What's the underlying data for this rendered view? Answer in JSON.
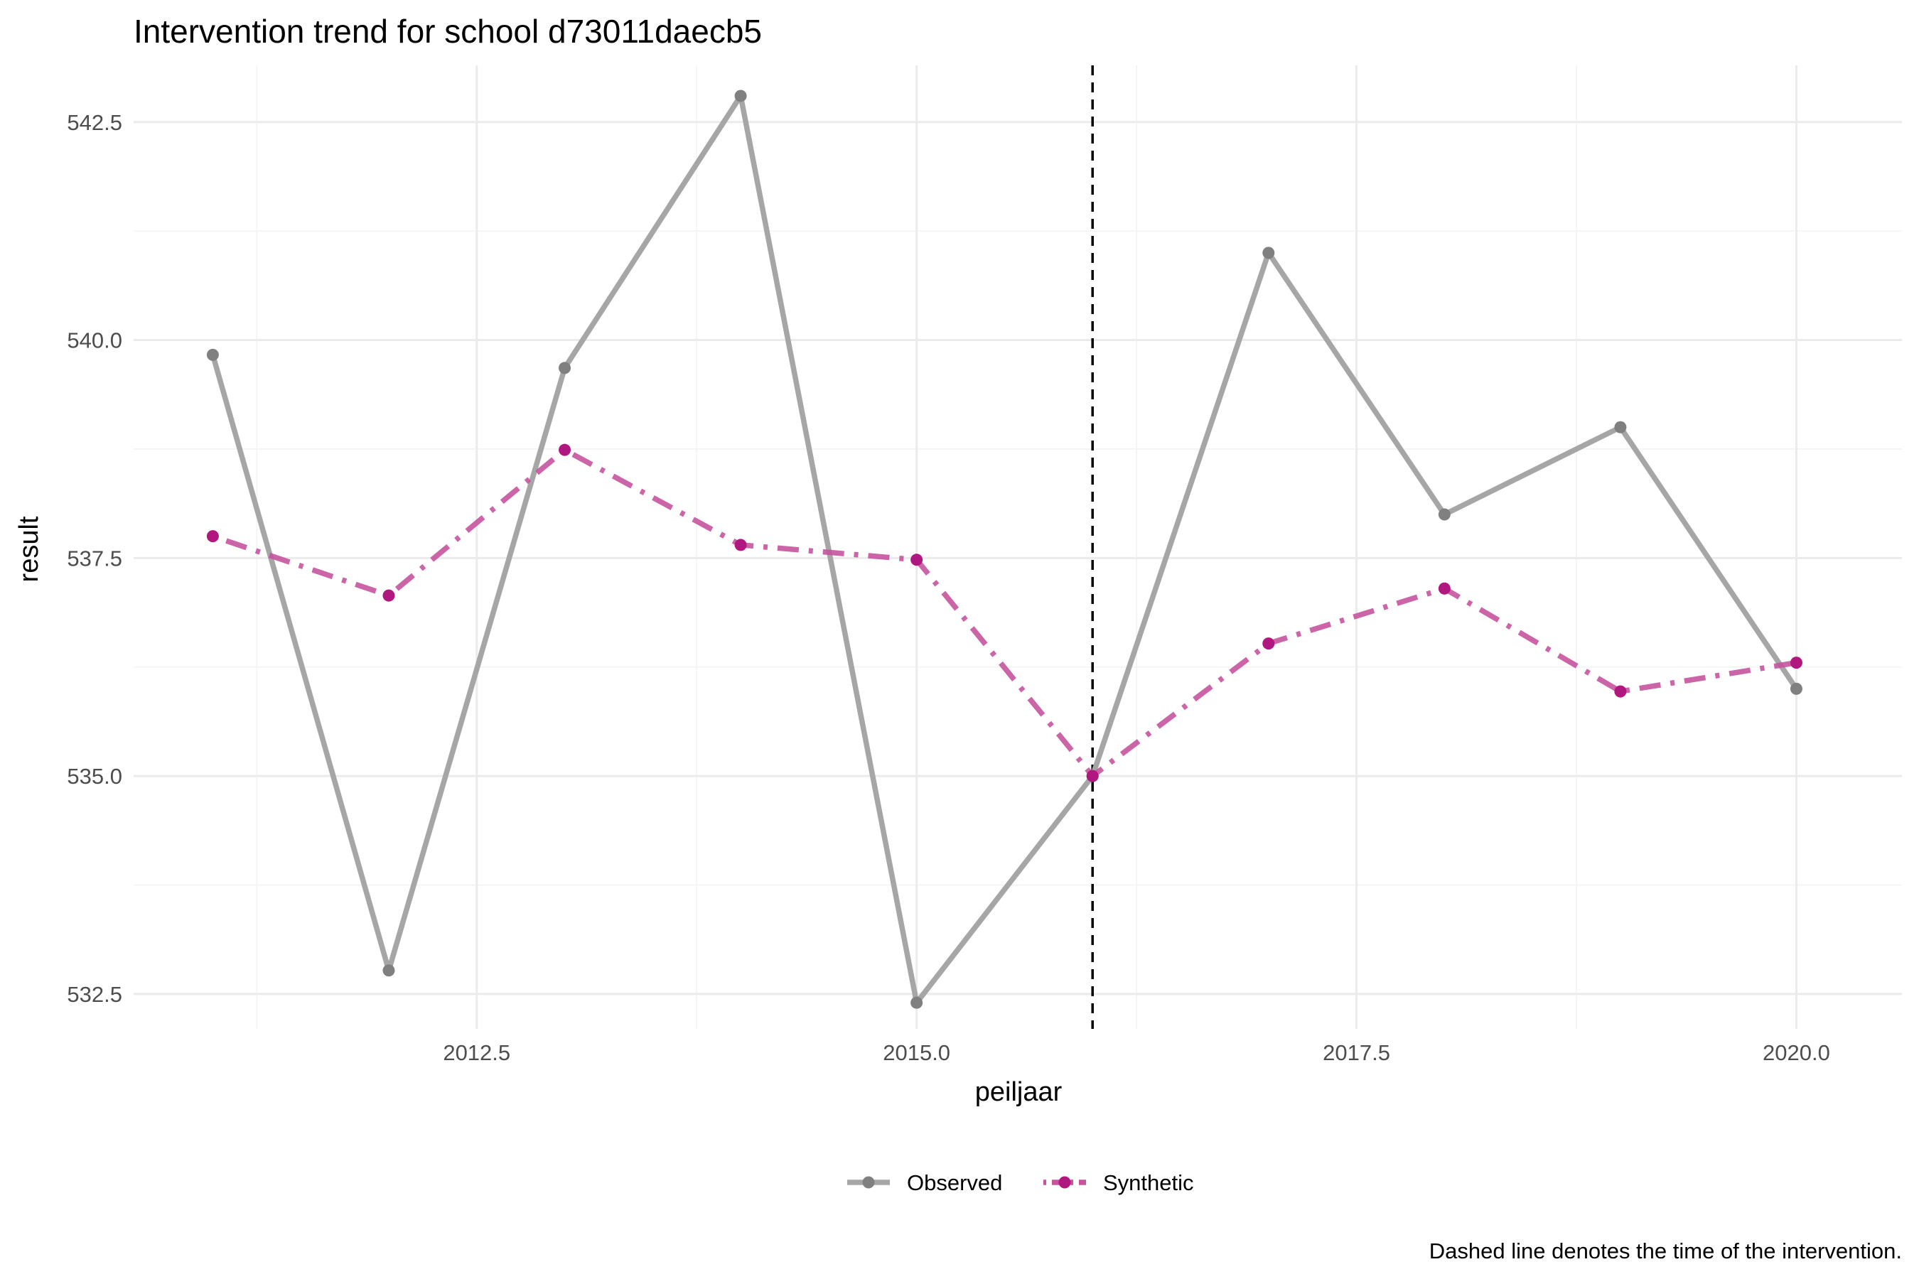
{
  "chart_data": {
    "type": "line",
    "title": "Intervention trend for school d73011daecb5",
    "xlabel": "peiljaar",
    "ylabel": "result",
    "caption": "Dashed line denotes the time of the intervention.",
    "x": [
      2011,
      2012,
      2013,
      2014,
      2015,
      2016,
      2017,
      2018,
      2019,
      2020
    ],
    "xlim": [
      2010.55,
      2020.6
    ],
    "ylim": [
      532.1,
      543.15
    ],
    "x_ticks": [
      2012.5,
      2015.0,
      2017.5,
      2020.0
    ],
    "x_tick_labels": [
      "2012.5",
      "2015.0",
      "2017.5",
      "2020.0"
    ],
    "y_ticks": [
      532.5,
      535.0,
      537.5,
      540.0,
      542.5
    ],
    "y_tick_labels": [
      "532.5",
      "535.0",
      "537.5",
      "540.0",
      "542.5"
    ],
    "intervention_x": 2016,
    "grid": true,
    "legend_position": "bottom",
    "series": [
      {
        "name": "Observed",
        "color": "#a6a6a6",
        "point_color": "#808080",
        "line_style": "solid",
        "values": [
          539.83,
          532.77,
          539.68,
          542.8,
          532.4,
          535.0,
          541.0,
          538.0,
          539.0,
          536.0
        ]
      },
      {
        "name": "Synthetic",
        "color": "#c6539e",
        "point_color": "#b0177f",
        "line_style": "dotdash",
        "values": [
          537.75,
          537.07,
          538.74,
          537.65,
          537.48,
          535.0,
          536.52,
          537.15,
          535.97,
          536.3
        ]
      }
    ]
  }
}
